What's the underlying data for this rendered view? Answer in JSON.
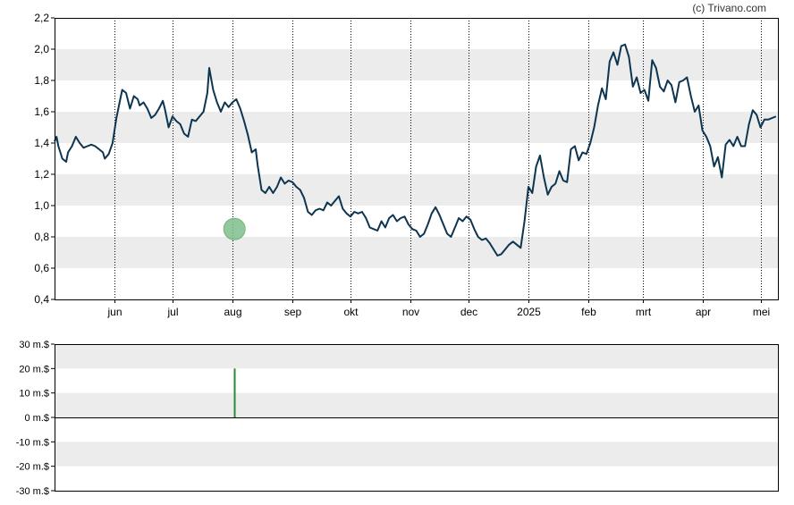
{
  "credit": "(c) Trivano.com",
  "colors": {
    "line": "#0d3550",
    "band": "#ececec",
    "grid": "#000000",
    "marker_fill": "#7fbf8e",
    "marker_stroke": "#5aa86c",
    "volume_bar": "#2a8a3a"
  },
  "chart_data": [
    {
      "type": "line",
      "title": "",
      "xlabel": "",
      "ylabel": "",
      "ylim": [
        0.4,
        2.2
      ],
      "y_ticks": [
        "0,4",
        "0,6",
        "0,8",
        "1,0",
        "1,2",
        "1,4",
        "1,6",
        "1,8",
        "2,0",
        "2,2"
      ],
      "x_ticks": [
        "jun",
        "jul",
        "aug",
        "sep",
        "okt",
        "nov",
        "dec",
        "2025",
        "feb",
        "mrt",
        "apr",
        "mei"
      ],
      "grid": "vertical dotted at month starts, alternating horizontal bands",
      "series": [
        {
          "points": [
            [
              0,
              1.41
            ],
            [
              1,
              1.44
            ],
            [
              2,
              1.38
            ],
            [
              4,
              1.3
            ],
            [
              6,
              1.28
            ],
            [
              7,
              1.34
            ],
            [
              9,
              1.38
            ],
            [
              11,
              1.44
            ],
            [
              13,
              1.4
            ],
            [
              15,
              1.37
            ],
            [
              17,
              1.38
            ],
            [
              19,
              1.39
            ],
            [
              21,
              1.38
            ],
            [
              23,
              1.36
            ],
            [
              25,
              1.34
            ],
            [
              26,
              1.3
            ],
            [
              28,
              1.33
            ],
            [
              30,
              1.4
            ],
            [
              32,
              1.56
            ],
            [
              34,
              1.68
            ],
            [
              35,
              1.74
            ],
            [
              37,
              1.72
            ],
            [
              39,
              1.62
            ],
            [
              41,
              1.7
            ],
            [
              43,
              1.68
            ],
            [
              44,
              1.64
            ],
            [
              46,
              1.66
            ],
            [
              48,
              1.62
            ],
            [
              50,
              1.56
            ],
            [
              52,
              1.58
            ],
            [
              54,
              1.62
            ],
            [
              56,
              1.67
            ],
            [
              57,
              1.62
            ],
            [
              59,
              1.5
            ],
            [
              61,
              1.57
            ],
            [
              63,
              1.54
            ],
            [
              65,
              1.52
            ],
            [
              67,
              1.46
            ],
            [
              69,
              1.44
            ],
            [
              71,
              1.55
            ],
            [
              73,
              1.54
            ],
            [
              75,
              1.57
            ],
            [
              77,
              1.6
            ],
            [
              79,
              1.72
            ],
            [
              80,
              1.88
            ],
            [
              82,
              1.74
            ],
            [
              84,
              1.66
            ],
            [
              86,
              1.6
            ],
            [
              88,
              1.66
            ],
            [
              90,
              1.63
            ],
            [
              92,
              1.66
            ],
            [
              94,
              1.68
            ],
            [
              96,
              1.62
            ],
            [
              98,
              1.54
            ],
            [
              100,
              1.45
            ],
            [
              102,
              1.34
            ],
            [
              104,
              1.36
            ],
            [
              105,
              1.26
            ],
            [
              107,
              1.1
            ],
            [
              109,
              1.08
            ],
            [
              111,
              1.12
            ],
            [
              113,
              1.08
            ],
            [
              115,
              1.12
            ],
            [
              117,
              1.18
            ],
            [
              119,
              1.14
            ],
            [
              121,
              1.16
            ],
            [
              123,
              1.15
            ],
            [
              125,
              1.12
            ],
            [
              127,
              1.1
            ],
            [
              129,
              1.05
            ],
            [
              131,
              0.96
            ],
            [
              133,
              0.94
            ],
            [
              135,
              0.97
            ],
            [
              137,
              0.98
            ],
            [
              139,
              0.97
            ],
            [
              141,
              1.02
            ],
            [
              143,
              1.0
            ],
            [
              145,
              1.03
            ],
            [
              147,
              1.06
            ],
            [
              149,
              0.98
            ],
            [
              151,
              0.95
            ],
            [
              153,
              0.93
            ],
            [
              155,
              0.96
            ],
            [
              157,
              0.95
            ],
            [
              159,
              0.96
            ],
            [
              161,
              0.92
            ],
            [
              163,
              0.86
            ],
            [
              165,
              0.85
            ],
            [
              167,
              0.84
            ],
            [
              169,
              0.9
            ],
            [
              171,
              0.86
            ],
            [
              173,
              0.92
            ],
            [
              175,
              0.94
            ],
            [
              177,
              0.9
            ],
            [
              179,
              0.92
            ],
            [
              181,
              0.93
            ],
            [
              183,
              0.88
            ],
            [
              185,
              0.85
            ],
            [
              187,
              0.84
            ],
            [
              189,
              0.8
            ],
            [
              191,
              0.82
            ],
            [
              193,
              0.88
            ],
            [
              195,
              0.95
            ],
            [
              197,
              0.99
            ],
            [
              199,
              0.94
            ],
            [
              201,
              0.88
            ],
            [
              203,
              0.82
            ],
            [
              205,
              0.8
            ],
            [
              207,
              0.86
            ],
            [
              209,
              0.92
            ],
            [
              211,
              0.9
            ],
            [
              213,
              0.93
            ],
            [
              215,
              0.91
            ],
            [
              217,
              0.85
            ],
            [
              219,
              0.8
            ],
            [
              221,
              0.78
            ],
            [
              223,
              0.79
            ],
            [
              225,
              0.76
            ],
            [
              227,
              0.72
            ],
            [
              229,
              0.68
            ],
            [
              231,
              0.69
            ],
            [
              233,
              0.72
            ],
            [
              235,
              0.75
            ],
            [
              237,
              0.77
            ],
            [
              239,
              0.75
            ],
            [
              241,
              0.73
            ],
            [
              243,
              0.9
            ],
            [
              245,
              1.12
            ],
            [
              247,
              1.08
            ],
            [
              249,
              1.25
            ],
            [
              251,
              1.32
            ],
            [
              253,
              1.18
            ],
            [
              255,
              1.07
            ],
            [
              257,
              1.12
            ],
            [
              259,
              1.14
            ],
            [
              261,
              1.22
            ],
            [
              263,
              1.16
            ],
            [
              265,
              1.15
            ],
            [
              267,
              1.36
            ],
            [
              269,
              1.38
            ],
            [
              271,
              1.29
            ],
            [
              273,
              1.34
            ],
            [
              275,
              1.33
            ],
            [
              277,
              1.4
            ],
            [
              279,
              1.5
            ],
            [
              281,
              1.64
            ],
            [
              283,
              1.75
            ],
            [
              285,
              1.68
            ],
            [
              287,
              1.92
            ],
            [
              289,
              1.98
            ],
            [
              291,
              1.9
            ],
            [
              293,
              2.02
            ],
            [
              295,
              2.03
            ],
            [
              297,
              1.95
            ],
            [
              299,
              1.76
            ],
            [
              301,
              1.82
            ],
            [
              303,
              1.72
            ],
            [
              305,
              1.74
            ],
            [
              307,
              1.67
            ],
            [
              309,
              1.93
            ],
            [
              311,
              1.88
            ],
            [
              313,
              1.76
            ],
            [
              315,
              1.73
            ],
            [
              317,
              1.8
            ],
            [
              319,
              1.77
            ],
            [
              321,
              1.66
            ],
            [
              323,
              1.79
            ],
            [
              325,
              1.8
            ],
            [
              327,
              1.82
            ],
            [
              329,
              1.7
            ],
            [
              331,
              1.6
            ],
            [
              333,
              1.64
            ],
            [
              335,
              1.48
            ],
            [
              337,
              1.44
            ],
            [
              339,
              1.38
            ],
            [
              341,
              1.25
            ],
            [
              343,
              1.31
            ],
            [
              345,
              1.18
            ],
            [
              347,
              1.39
            ],
            [
              349,
              1.42
            ],
            [
              351,
              1.38
            ],
            [
              353,
              1.44
            ],
            [
              355,
              1.38
            ],
            [
              357,
              1.38
            ],
            [
              359,
              1.52
            ],
            [
              361,
              1.61
            ],
            [
              363,
              1.58
            ],
            [
              365,
              1.5
            ],
            [
              367,
              1.55
            ],
            [
              369,
              1.55
            ],
            [
              371,
              1.56
            ],
            [
              373,
              1.57
            ]
          ]
        }
      ],
      "marker_at_day": 93,
      "marker_value": 0.85
    },
    {
      "type": "bar",
      "title": "",
      "xlabel": "",
      "ylabel": "",
      "ylim": [
        -30,
        30
      ],
      "y_ticks": [
        "30 m.$",
        "20 m.$",
        "10 m.$",
        "0 m.$",
        "-10 m.$",
        "-20 m.$",
        "-30 m.$"
      ],
      "series": [
        {
          "points": [
            [
              93,
              20
            ]
          ]
        }
      ]
    }
  ]
}
